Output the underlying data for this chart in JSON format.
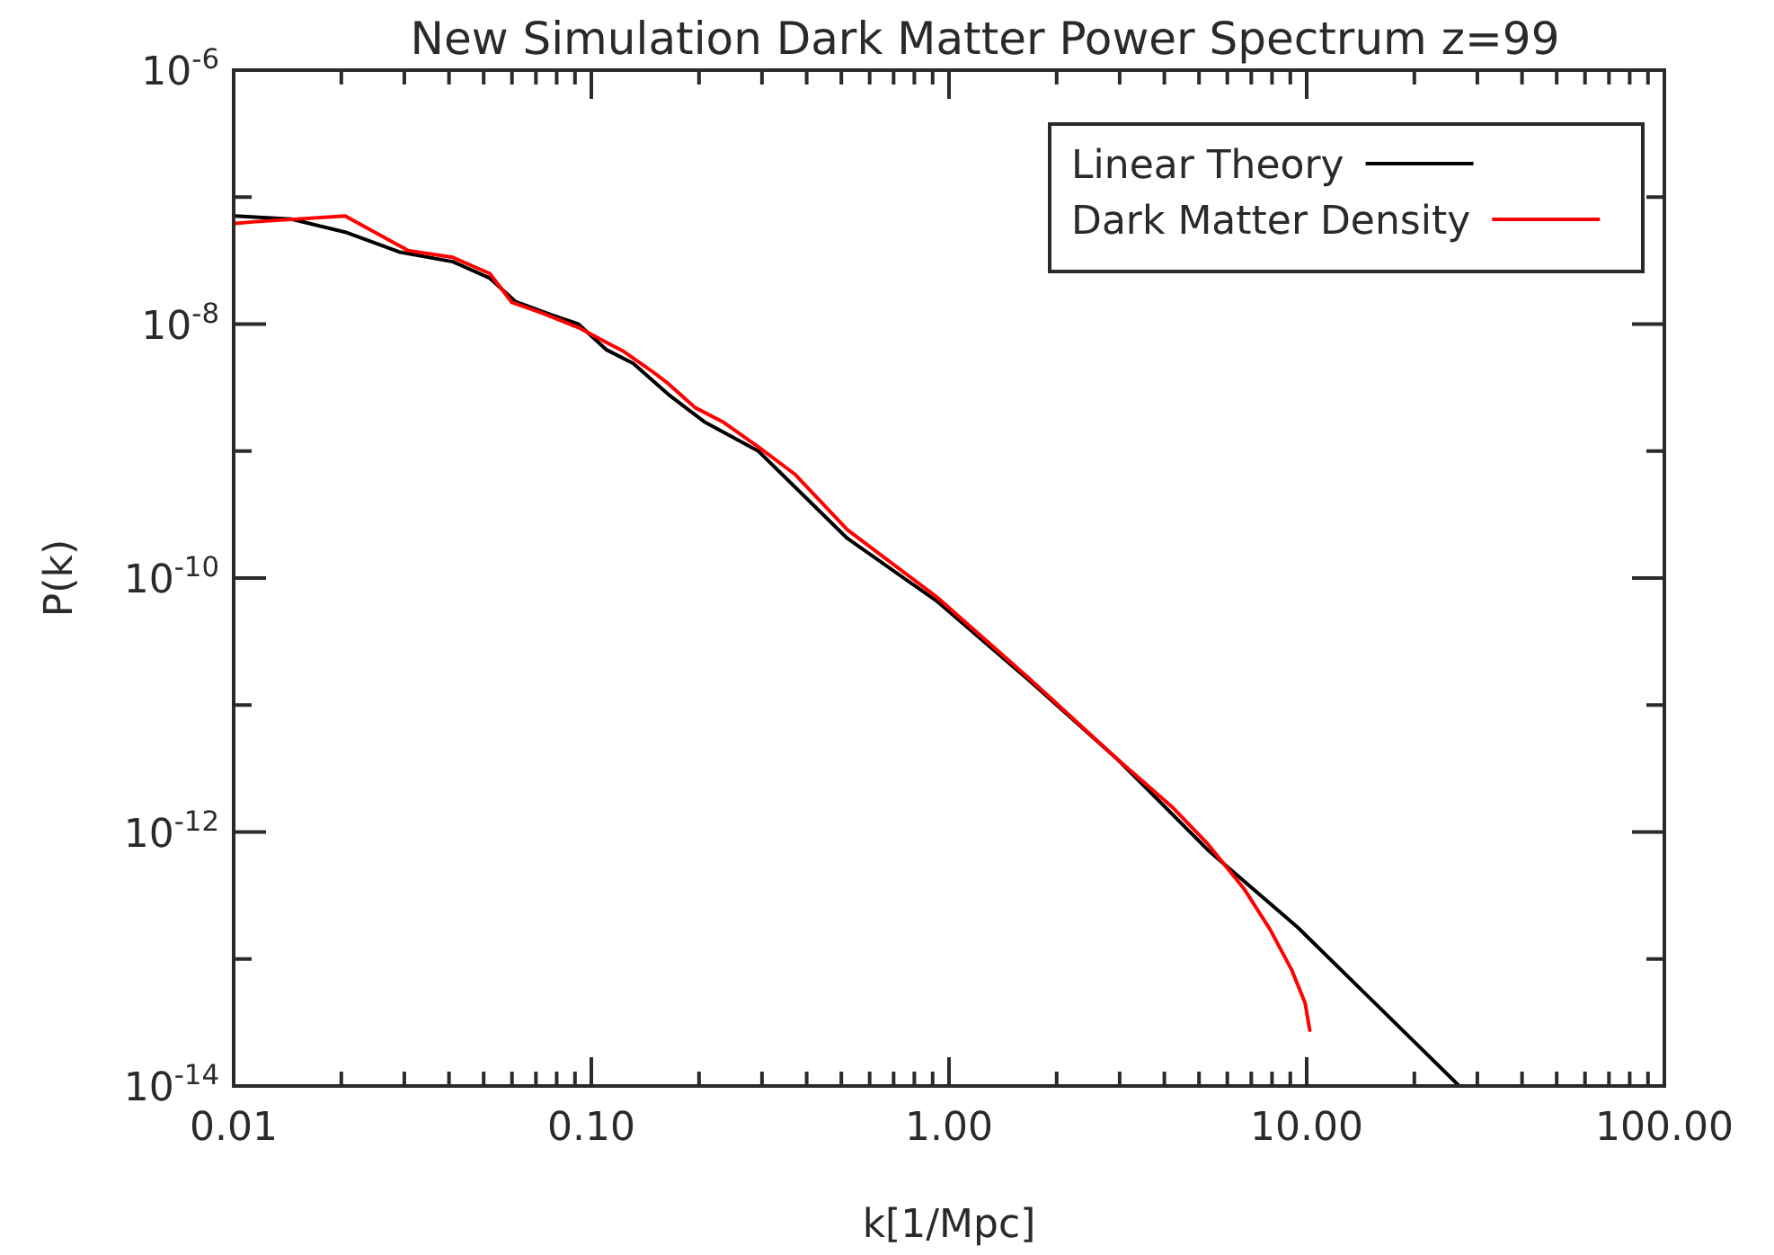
{
  "chart_data": {
    "type": "line",
    "title": "New Simulation Dark Matter Power Spectrum z=99",
    "xlabel": "k[1/Mpc]",
    "ylabel": "P(k)",
    "log": "xy",
    "legend": "top right",
    "grid": false,
    "xlim": [
      0.01,
      100
    ],
    "ylim": [
      1e-14,
      1e-06
    ],
    "xticks": [
      {
        "value": 0.01,
        "label": "0.01"
      },
      {
        "value": 0.02,
        "label": null
      },
      {
        "value": 0.03,
        "label": null
      },
      {
        "value": 0.04,
        "label": null
      },
      {
        "value": 0.05,
        "label": null
      },
      {
        "value": 0.06,
        "label": null
      },
      {
        "value": 0.07,
        "label": null
      },
      {
        "value": 0.08,
        "label": null
      },
      {
        "value": 0.09,
        "label": null
      },
      {
        "value": 0.1,
        "label": "0.10"
      },
      {
        "value": 0.2,
        "label": null
      },
      {
        "value": 0.3,
        "label": null
      },
      {
        "value": 0.4,
        "label": null
      },
      {
        "value": 0.5,
        "label": null
      },
      {
        "value": 0.6,
        "label": null
      },
      {
        "value": 0.7,
        "label": null
      },
      {
        "value": 0.8,
        "label": null
      },
      {
        "value": 0.9,
        "label": null
      },
      {
        "value": 1,
        "label": "1.00"
      },
      {
        "value": 2,
        "label": null
      },
      {
        "value": 3,
        "label": null
      },
      {
        "value": 4,
        "label": null
      },
      {
        "value": 5,
        "label": null
      },
      {
        "value": 6,
        "label": null
      },
      {
        "value": 7,
        "label": null
      },
      {
        "value": 8,
        "label": null
      },
      {
        "value": 9,
        "label": null
      },
      {
        "value": 10,
        "label": "10.00"
      },
      {
        "value": 20,
        "label": null
      },
      {
        "value": 30,
        "label": null
      },
      {
        "value": 40,
        "label": null
      },
      {
        "value": 50,
        "label": null
      },
      {
        "value": 60,
        "label": null
      },
      {
        "value": 70,
        "label": null
      },
      {
        "value": 80,
        "label": null
      },
      {
        "value": 90,
        "label": null
      },
      {
        "value": 100,
        "label": "100.00"
      }
    ],
    "yticks": [
      {
        "value": 1e-14,
        "label": "10$^{-14}$"
      },
      {
        "value": 1e-13,
        "label": null
      },
      {
        "value": 1e-12,
        "label": "10$^{-12}$"
      },
      {
        "value": 1e-11,
        "label": null
      },
      {
        "value": 1e-10,
        "label": "10$^{-10}$"
      },
      {
        "value": 1e-09,
        "label": null
      },
      {
        "value": 1e-08,
        "label": "10$^{-8}$"
      },
      {
        "value": 1e-07,
        "label": null
      },
      {
        "value": 1e-06,
        "label": "10$^{-6}$"
      }
    ],
    "series": [
      {
        "name": "Linear Theory",
        "color": "#000000",
        "x": [
          0.0101,
          0.0145,
          0.0205,
          0.029,
          0.041,
          0.052,
          0.0615,
          0.0775,
          0.092,
          0.11,
          0.131,
          0.164,
          0.207,
          0.293,
          0.52,
          0.93,
          1.66,
          2.97,
          5.3,
          9.45,
          26.7
        ],
        "values": [
          7.1e-08,
          6.7e-08,
          5.3e-08,
          3.7e-08,
          3.1e-08,
          2.3e-08,
          1.5e-08,
          1.18e-08,
          1e-08,
          6.3e-09,
          4.9e-09,
          2.8e-09,
          1.7e-09,
          1e-09,
          2.05e-10,
          6.5e-11,
          1.6e-11,
          3.7e-12,
          7.2e-13,
          1.77e-13,
          1e-14
        ]
      },
      {
        "name": "Dark Matter Density",
        "color": "#ff0000",
        "x": [
          0.0101,
          0.0115,
          0.0205,
          0.0307,
          0.041,
          0.052,
          0.06,
          0.073,
          0.092,
          0.11,
          0.123,
          0.147,
          0.164,
          0.195,
          0.233,
          0.293,
          0.37,
          0.52,
          0.93,
          1.66,
          2.97,
          4.2,
          5.3,
          6.67,
          7.9,
          9.1,
          9.9,
          10.2
        ],
        "values": [
          6.2e-08,
          6.4e-08,
          7.1e-08,
          3.8e-08,
          3.35e-08,
          2.5e-08,
          1.48e-08,
          1.22e-08,
          9.4e-09,
          7.2e-09,
          6.1e-09,
          4.3e-09,
          3.4e-09,
          2.2e-09,
          1.7e-09,
          1.08e-09,
          6.6e-10,
          2.4e-10,
          7e-11,
          1.66e-11,
          3.7e-12,
          1.58e-12,
          8e-13,
          3.6e-13,
          1.71e-13,
          8.1e-14,
          4.5e-14,
          2.75e-14
        ]
      }
    ]
  }
}
